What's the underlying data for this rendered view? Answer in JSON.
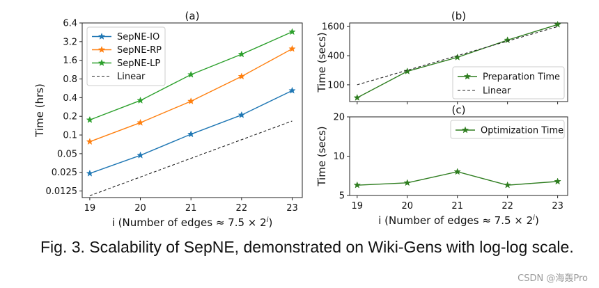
{
  "chart_data": [
    {
      "id": "a",
      "panel_label": "(a)",
      "type": "line",
      "yscale": "log2",
      "xlabel_prefix": "i (Number of edges ",
      "xlabel_approx": "≈ 7.5 × 2",
      "xlabel_sup": "i",
      "xlabel_close": ")",
      "ylabel": "Time (hrs)",
      "x": [
        19,
        20,
        21,
        22,
        23
      ],
      "xtick_labels": [
        "19",
        "20",
        "21",
        "22",
        "23"
      ],
      "yticks": [
        0.0125,
        0.025,
        0.05,
        0.1,
        0.2,
        0.4,
        0.8,
        1.6,
        3.2,
        6.4
      ],
      "ytick_labels": [
        "0.0125",
        "0.025",
        "0.05",
        "0.1",
        "0.2",
        "0.4",
        "0.8",
        "1.6",
        "3.2",
        "6.4"
      ],
      "xlim": [
        18.85,
        23.2
      ],
      "ylim": [
        0.0098,
        6.4
      ],
      "legend_loc": "upper-left",
      "series": [
        {
          "name": "SepNE-IO",
          "color": "#1f77b4",
          "marker": "star",
          "dash": false,
          "values": [
            0.024,
            0.047,
            0.103,
            0.21,
            0.52
          ]
        },
        {
          "name": "SepNE-RP",
          "color": "#ff7f0e",
          "marker": "star",
          "dash": false,
          "values": [
            0.078,
            0.158,
            0.35,
            0.88,
            2.45
          ]
        },
        {
          "name": "SepNE-LP",
          "color": "#2ca02c",
          "marker": "star",
          "dash": false,
          "values": [
            0.175,
            0.36,
            0.94,
            2.0,
            4.6
          ]
        },
        {
          "name": "Linear",
          "color": "#222222",
          "marker": "none",
          "dash": true,
          "values": [
            0.0105,
            0.021,
            0.042,
            0.084,
            0.168
          ]
        }
      ]
    },
    {
      "id": "b",
      "panel_label": "(b)",
      "type": "line",
      "yscale": "log2",
      "ylabel": "Time (secs)",
      "x": [
        19,
        20,
        21,
        22,
        23
      ],
      "xtick_labels": [],
      "yticks": [
        100,
        400,
        1600
      ],
      "ytick_labels": [
        "100",
        "400",
        "1600"
      ],
      "xlim": [
        18.85,
        23.2
      ],
      "ylim": [
        45,
        1900
      ],
      "legend_loc": "lower-right",
      "series": [
        {
          "name": "Preparation Time",
          "color": "#2e7d1f",
          "marker": "star",
          "dash": false,
          "values": [
            54,
            190,
            370,
            840,
            1760
          ]
        },
        {
          "name": "Linear",
          "color": "#222222",
          "marker": "none",
          "dash": true,
          "values": [
            100,
            200,
            400,
            800,
            1600
          ]
        }
      ]
    },
    {
      "id": "c",
      "panel_label": "(c)",
      "type": "line",
      "yscale": "log2",
      "xlabel_prefix": "i (Number of edges ",
      "xlabel_approx": "≈ 7.5 × 2",
      "xlabel_sup": "i",
      "xlabel_close": ")",
      "ylabel": "Time (secs)",
      "x": [
        19,
        20,
        21,
        22,
        23
      ],
      "xtick_labels": [
        "19",
        "20",
        "21",
        "22",
        "23"
      ],
      "yticks": [
        5,
        10,
        20
      ],
      "ytick_labels": [
        "5",
        "10",
        "20"
      ],
      "xlim": [
        18.85,
        23.2
      ],
      "ylim": [
        5,
        20
      ],
      "legend_loc": "upper-right",
      "series": [
        {
          "name": "Optimization Time",
          "color": "#2e7d1f",
          "marker": "star",
          "dash": false,
          "values": [
            6.0,
            6.25,
            7.6,
            6.0,
            6.4
          ]
        }
      ]
    }
  ],
  "caption": "Fig. 3. Scalability of SepNE, demonstrated on Wiki-Gens with log-log scale.",
  "watermark": "CSDN @海轰Pro"
}
